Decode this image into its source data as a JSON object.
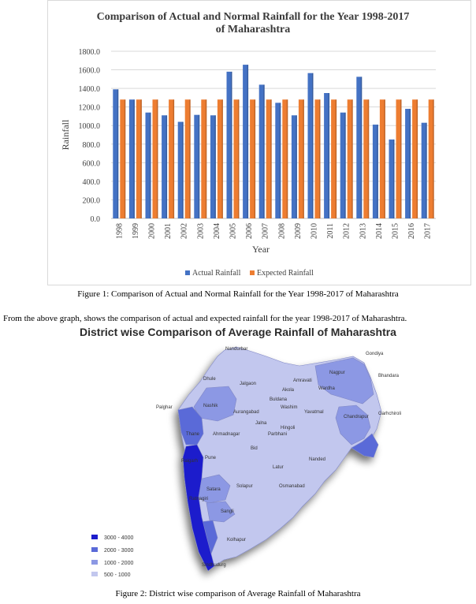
{
  "chart_data": {
    "type": "bar",
    "title_lines": [
      "Comparison of Actual and Normal Rainfall for the Year 1998-2017",
      "of Maharashtra"
    ],
    "xlabel": "Year",
    "ylabel": "Rainfall",
    "ylim": [
      0,
      1800
    ],
    "yticks": [
      "0.0",
      "200.0",
      "400.0",
      "600.0",
      "800.0",
      "1000.0",
      "1200.0",
      "1400.0",
      "1600.0",
      "1800.0"
    ],
    "grid": true,
    "legend_position": "bottom",
    "categories": [
      "1998",
      "1999",
      "2000",
      "2001",
      "2002",
      "2003",
      "2004",
      "2005",
      "2006",
      "2007",
      "2008",
      "2009",
      "2010",
      "2011",
      "2012",
      "2013",
      "2014",
      "2015",
      "2016",
      "2017"
    ],
    "series": [
      {
        "name": "Actual Rainfall",
        "color": "#4472c4",
        "values": [
          1390,
          1280,
          1140,
          1110,
          1040,
          1115,
          1110,
          1580,
          1655,
          1440,
          1245,
          1110,
          1565,
          1350,
          1140,
          1525,
          1010,
          850,
          1180,
          1030
        ]
      },
      {
        "name": "Expected Rainfall",
        "color": "#ed7d31",
        "values": [
          1280,
          1280,
          1280,
          1280,
          1280,
          1280,
          1280,
          1280,
          1280,
          1280,
          1280,
          1280,
          1280,
          1280,
          1280,
          1280,
          1280,
          1280,
          1280,
          1280
        ]
      }
    ]
  },
  "fig1_caption": "Figure 1: Comparison of Actual and Normal Rainfall for the Year 1998-2017 of Maharashtra",
  "paragraph": "From the above graph, shows the comparison of actual and expected rainfall for the year 1998-2017 of Maharashtra.",
  "map": {
    "title": "District wise Comparison of Average Rainfall of Maharashtra",
    "districts": {
      "nandurbar": "Nandurbar",
      "gondiya": "Gondiya",
      "bhandara": "Bhandara",
      "dhule": "Dhule",
      "jalgaon": "Jalgaon",
      "amravati": "Amravati",
      "nagpur": "Nagpur",
      "wardha": "Wardha",
      "buldana": "Buldana",
      "akola": "Akola",
      "palghar": "Palghar",
      "nashik": "Nashik",
      "aurangabad": "Aurangabad",
      "washim": "Washim",
      "yavatmal": "Yavatmal",
      "chandrapur": "Chandrapur",
      "gadchiroli": "Garhchiroli",
      "jalna": "Jalna",
      "hingoli": "Hingoli",
      "thane": "Thane",
      "ahmadnagar": "Ahmadnagar",
      "parbhani": "Parbhani",
      "bid": "Bid",
      "nanded": "Nanded",
      "raigarh": "Raigarh",
      "pune": "Pune",
      "latur": "Latur",
      "osmanabad": "Osmanabad",
      "satara": "Satara",
      "solapur": "Solapur",
      "ratnagiri": "Ratnagiri",
      "sangli": "Sangli",
      "kolhapur": "Kolhapur",
      "sindhudurg": "Sindhudurg"
    },
    "legend": [
      {
        "label": "3000 - 4000",
        "color": "#1c1ccc"
      },
      {
        "label": "2000 - 3000",
        "color": "#5a6ad8"
      },
      {
        "label": "1000 - 2000",
        "color": "#8c98e4"
      },
      {
        "label": "500 - 1000",
        "color": "#c2c7ee"
      }
    ]
  },
  "fig2_caption": "Figure 2: District wise comparison of Average Rainfall of Maharashtra"
}
